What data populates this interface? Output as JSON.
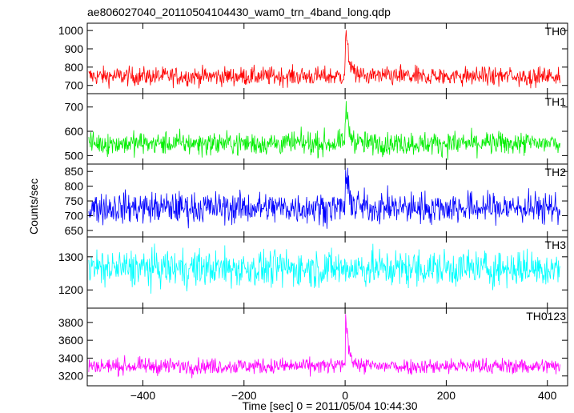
{
  "title": "ae806027040_20110504104430_wam0_trn_4band_long.qdp",
  "chart_data": {
    "type": "line",
    "title": "ae806027040_20110504104430_wam0_trn_4band_long.qdp",
    "xlabel": "Time [sec] 0 = 2011/05/04 10:44:30",
    "ylabel": "Counts/sec",
    "xlim": [
      -510,
      440
    ],
    "x_ticks": [
      -400,
      -200,
      0,
      200,
      400
    ],
    "x_tick_labels": [
      "−400",
      "−200",
      "0",
      "200",
      "400"
    ],
    "x_sample_step": 1,
    "x_sample_range": [
      -507,
      425
    ],
    "grid": false,
    "panels": [
      {
        "name": "TH0",
        "color": "#ff0000",
        "ylim": [
          655,
          1040
        ],
        "y_ticks": [
          700,
          800,
          900,
          1000
        ],
        "baseline": 750,
        "noise": 26,
        "peak": {
          "x": 1,
          "value": 1040
        }
      },
      {
        "name": "TH1",
        "color": "#00ee00",
        "ylim": [
          465,
          755
        ],
        "y_ticks": [
          500,
          600,
          700
        ],
        "baseline": 550,
        "noise": 24,
        "peak": {
          "x": 1,
          "value": 730
        }
      },
      {
        "name": "TH2",
        "color": "#0000ff",
        "ylim": [
          628,
          875
        ],
        "y_ticks": [
          650,
          700,
          750,
          800,
          850
        ],
        "baseline": 727,
        "noise": 27,
        "peak": {
          "x": 1,
          "value": 860
        }
      },
      {
        "name": "TH3",
        "color": "#00ffff",
        "ylim": [
          1145,
          1360
        ],
        "y_ticks": [
          1200,
          1300
        ],
        "baseline": 1265,
        "noise": 28,
        "peak": null
      },
      {
        "name": "TH0123",
        "color": "#ff00ff",
        "ylim": [
          3090,
          3960
        ],
        "y_ticks": [
          3200,
          3400,
          3600,
          3800
        ],
        "baseline": 3310,
        "noise": 45,
        "peak": {
          "x": 1,
          "value": 3950
        }
      }
    ]
  }
}
